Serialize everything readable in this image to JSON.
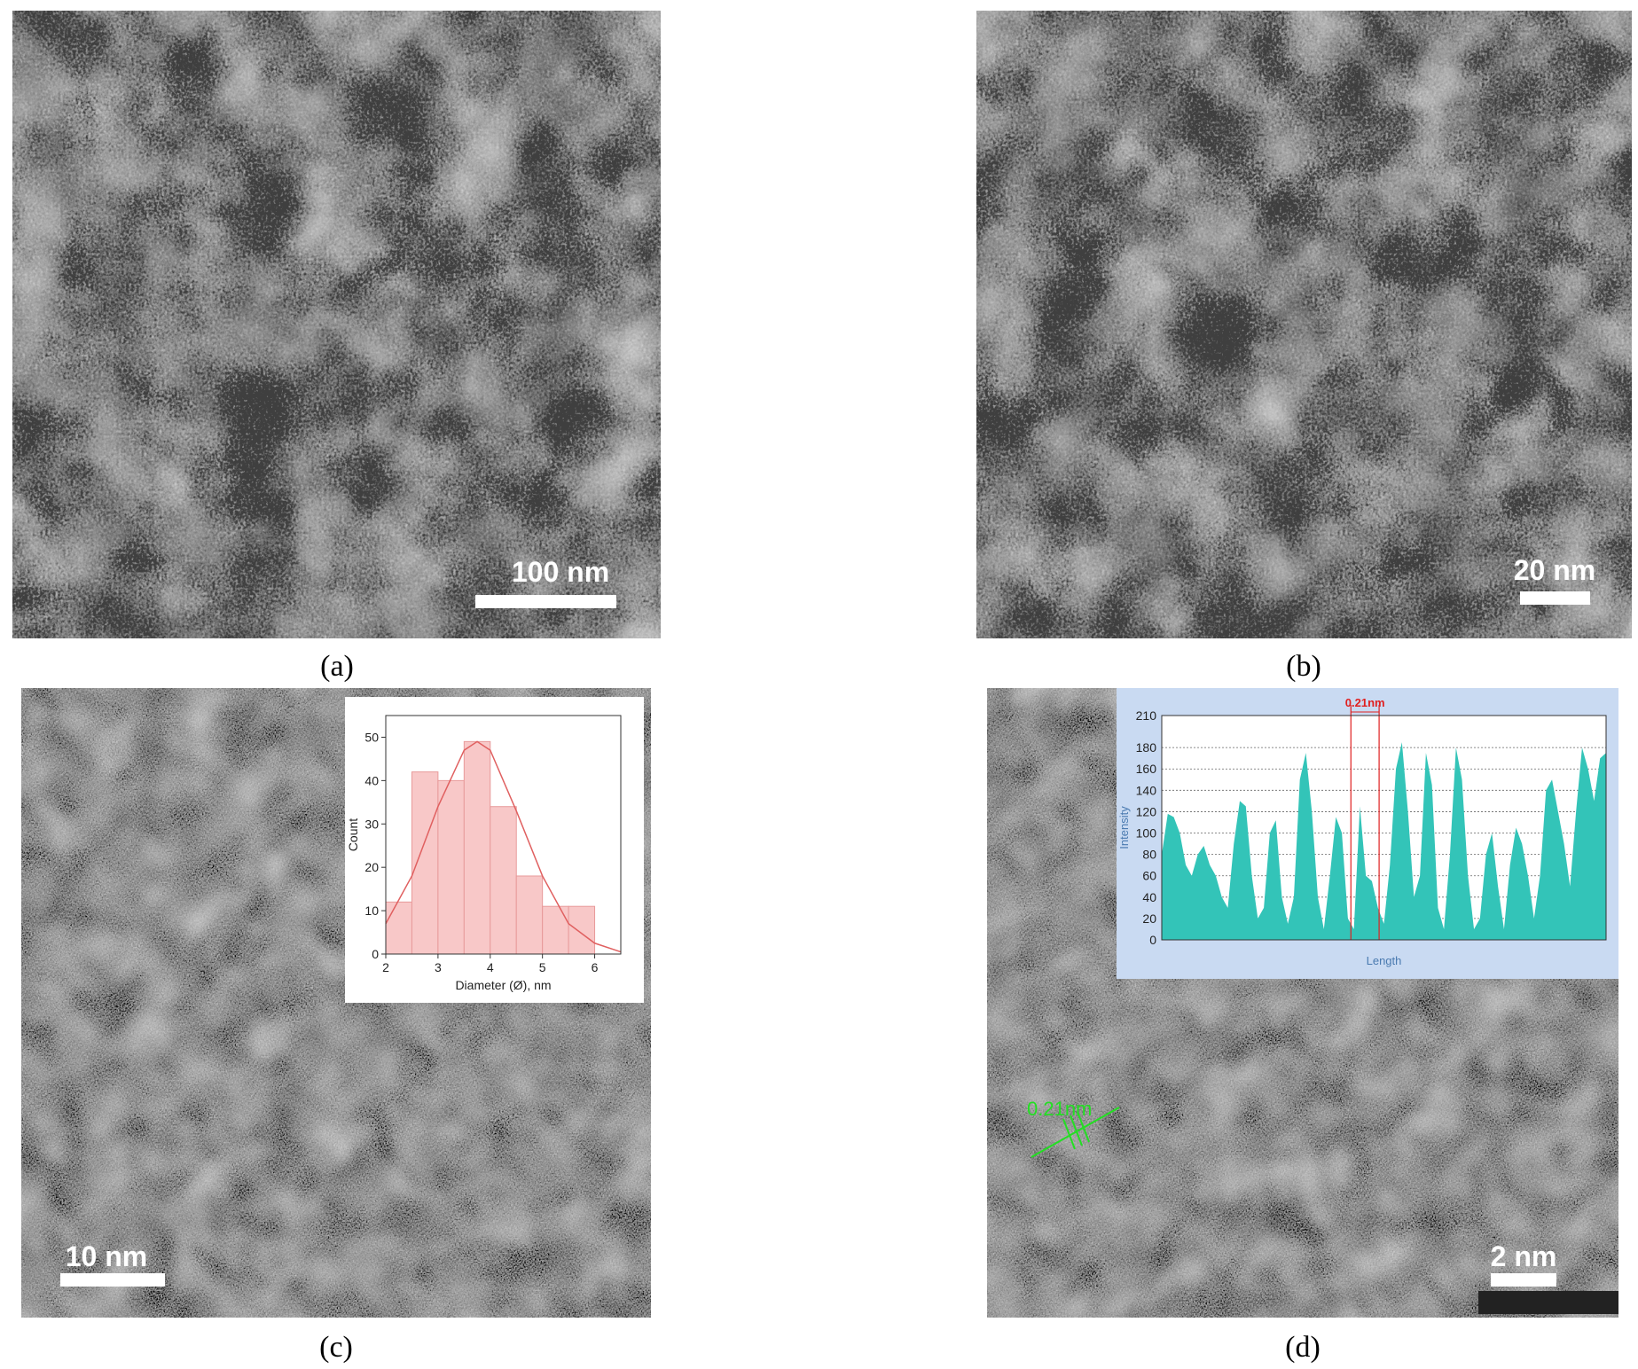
{
  "panels": [
    {
      "label": "(a)",
      "scale_bar": "100 nm"
    },
    {
      "label": "(b)",
      "scale_bar": "20 nm"
    },
    {
      "label": "(c)",
      "scale_bar": "10 nm"
    },
    {
      "label": "(d)",
      "scale_bar": "2 nm",
      "annotation": "0.21nm"
    }
  ],
  "chart_data": [
    {
      "type": "histogram",
      "x_label": "Diameter (Ø), nm",
      "y_label": "Count",
      "bins": [
        2,
        2.5,
        3,
        3.5,
        4,
        4.5,
        5,
        5.5,
        6
      ],
      "values": [
        12,
        42,
        40,
        49,
        34,
        18,
        11,
        11
      ],
      "color": "#f8c8c8",
      "edge_color": "#e89a9a",
      "fit_x": [
        2,
        2.5,
        3,
        3.5,
        3.75,
        4,
        4.5,
        5,
        5.5,
        6,
        6.5
      ],
      "fit_values": [
        7,
        18,
        34,
        47,
        49,
        47,
        33,
        18,
        7,
        2.5,
        0.5
      ],
      "fit_color": "#e06060",
      "xlim": [
        2,
        6.5
      ],
      "xticks": [
        2,
        3,
        4,
        5,
        6
      ],
      "ylim": [
        0,
        55
      ],
      "yticks": [
        0,
        10,
        20,
        30,
        40,
        50
      ]
    },
    {
      "type": "area",
      "x_label": "Length",
      "y_label": "Intensity",
      "color": "#33c4b8",
      "x": [
        0,
        1,
        2,
        3,
        4,
        5,
        6,
        7,
        8,
        9,
        10,
        11,
        12,
        13,
        14,
        15,
        16,
        17,
        18,
        19,
        20,
        21,
        22,
        23,
        24,
        25,
        26,
        27,
        28,
        29,
        30,
        31,
        32,
        33,
        34,
        35,
        36,
        37,
        38,
        39,
        40,
        41,
        42,
        43,
        44,
        45,
        46,
        47,
        48,
        49,
        50,
        51,
        52,
        53,
        54,
        55,
        56,
        57,
        58,
        59,
        60,
        61,
        62,
        63,
        64,
        65,
        66,
        67,
        68,
        69,
        70,
        71,
        72,
        73,
        74
      ],
      "values": [
        80,
        118,
        115,
        100,
        70,
        60,
        80,
        88,
        70,
        60,
        40,
        30,
        90,
        130,
        125,
        60,
        20,
        30,
        100,
        112,
        40,
        15,
        40,
        150,
        175,
        120,
        40,
        10,
        60,
        115,
        100,
        20,
        10,
        125,
        60,
        55,
        30,
        15,
        70,
        160,
        185,
        120,
        40,
        60,
        175,
        145,
        30,
        10,
        80,
        180,
        150,
        60,
        10,
        20,
        80,
        100,
        50,
        10,
        70,
        105,
        90,
        60,
        20,
        60,
        140,
        150,
        120,
        90,
        50,
        120,
        180,
        160,
        130,
        170,
        175
      ],
      "xlim": [
        0,
        74
      ],
      "ylim": [
        0,
        210
      ],
      "yticks": [
        0,
        20,
        40,
        60,
        80,
        100,
        120,
        140,
        160,
        180,
        210
      ],
      "grid": true,
      "annotation": {
        "text": "0.21nm",
        "x": [
          31.5,
          36.2
        ],
        "color": "#e02020"
      }
    }
  ]
}
